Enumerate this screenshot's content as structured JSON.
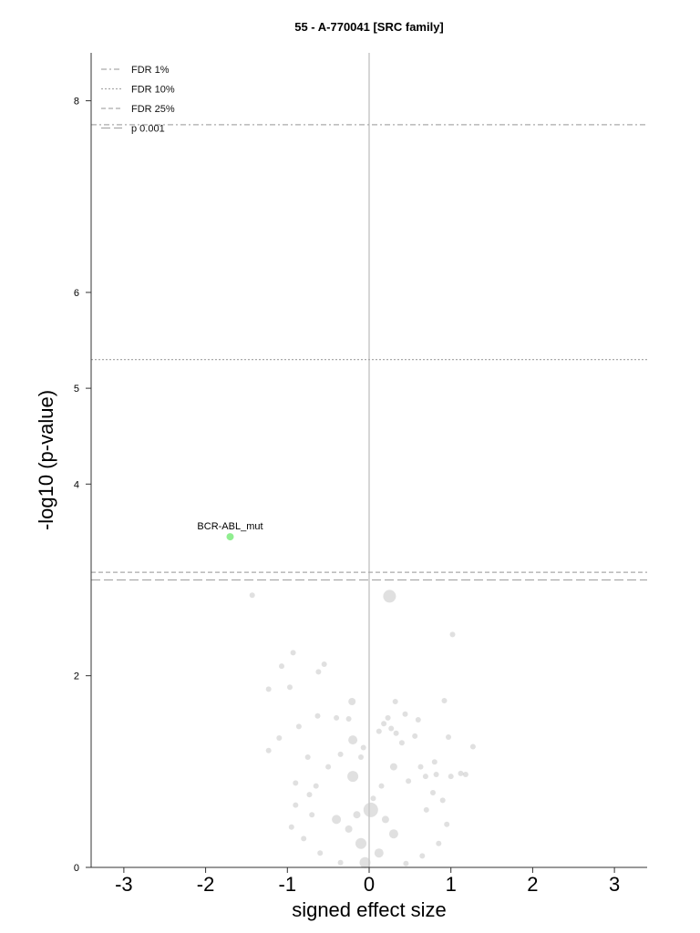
{
  "chart_data": {
    "type": "scatter",
    "title": "55 - A-770041 [SRC family]",
    "xlabel": "signed effect size",
    "ylabel": "-log10 (p-value)",
    "xlim": [
      -3.4,
      3.4
    ],
    "ylim": [
      0,
      8.5
    ],
    "x_ticks": [
      "-3",
      "-2",
      "-1",
      "0",
      "1",
      "2",
      "3"
    ],
    "y_ticks": [
      "0",
      "2",
      "4",
      "5",
      "6",
      "8"
    ],
    "grid": false,
    "legend_position": "top-left",
    "colors": {
      "background_points": "#555555",
      "highlight": "#90ee90",
      "lines": "#aaaaaa",
      "zero_line": "#c8c8c8"
    },
    "thresholds": [
      {
        "name": "FDR 1%",
        "y": 7.75,
        "style": "dashdot"
      },
      {
        "name": "FDR 10%",
        "y": 5.3,
        "style": "dotted"
      },
      {
        "name": "FDR 25%",
        "y": 3.08,
        "style": "dashed"
      },
      {
        "name": "p 0.001",
        "y": 3.0,
        "style": "longdash"
      }
    ],
    "highlight_points": [
      {
        "label": "BCR-ABL_mut",
        "x": -1.7,
        "y": 3.45,
        "size": 4
      }
    ],
    "points": [
      [
        0.25,
        2.83,
        7
      ],
      [
        -1.43,
        2.84,
        3
      ],
      [
        1.02,
        2.43,
        3
      ],
      [
        -0.93,
        2.24,
        3
      ],
      [
        -0.55,
        2.12,
        3
      ],
      [
        -1.07,
        2.1,
        3
      ],
      [
        -0.62,
        2.04,
        3
      ],
      [
        -1.23,
        1.86,
        3
      ],
      [
        -0.97,
        1.88,
        3
      ],
      [
        0.92,
        1.74,
        3
      ],
      [
        0.32,
        1.73,
        3
      ],
      [
        -0.21,
        1.73,
        4
      ],
      [
        -0.63,
        1.58,
        3
      ],
      [
        -0.4,
        1.56,
        3
      ],
      [
        -0.25,
        1.55,
        3
      ],
      [
        0.23,
        1.56,
        3
      ],
      [
        0.44,
        1.6,
        3
      ],
      [
        0.6,
        1.54,
        3
      ],
      [
        -0.86,
        1.47,
        3
      ],
      [
        0.18,
        1.5,
        3
      ],
      [
        0.27,
        1.45,
        3
      ],
      [
        -1.1,
        1.35,
        3
      ],
      [
        0.97,
        1.36,
        3
      ],
      [
        -0.2,
        1.33,
        5
      ],
      [
        0.12,
        1.42,
        3
      ],
      [
        0.33,
        1.4,
        3
      ],
      [
        0.56,
        1.37,
        3
      ],
      [
        -1.23,
        1.22,
        3
      ],
      [
        1.27,
        1.26,
        3
      ],
      [
        -0.07,
        1.25,
        3
      ],
      [
        0.4,
        1.3,
        3
      ],
      [
        -0.75,
        1.15,
        3
      ],
      [
        -0.35,
        1.18,
        3
      ],
      [
        -0.1,
        1.15,
        3
      ],
      [
        0.8,
        1.1,
        3
      ],
      [
        0.63,
        1.05,
        3
      ],
      [
        0.3,
        1.05,
        4
      ],
      [
        -0.5,
        1.05,
        3
      ],
      [
        -0.2,
        0.95,
        6
      ],
      [
        1.12,
        0.98,
        3
      ],
      [
        1.0,
        0.95,
        3
      ],
      [
        1.18,
        0.97,
        3
      ],
      [
        0.82,
        0.97,
        3
      ],
      [
        -0.9,
        0.88,
        3
      ],
      [
        0.48,
        0.9,
        3
      ],
      [
        0.69,
        0.95,
        3
      ],
      [
        -0.65,
        0.85,
        3
      ],
      [
        0.15,
        0.85,
        3
      ],
      [
        0.02,
        0.6,
        8
      ],
      [
        -0.4,
        0.5,
        5
      ],
      [
        0.3,
        0.35,
        5
      ],
      [
        -0.1,
        0.25,
        6
      ],
      [
        0.12,
        0.15,
        5
      ],
      [
        -0.05,
        0.05,
        6
      ],
      [
        0.05,
        0.72,
        3
      ],
      [
        0.78,
        0.78,
        3
      ],
      [
        -0.73,
        0.76,
        3
      ],
      [
        0.9,
        0.7,
        3
      ],
      [
        -0.9,
        0.65,
        3
      ],
      [
        0.7,
        0.6,
        3
      ],
      [
        -0.7,
        0.55,
        3
      ],
      [
        -0.95,
        0.42,
        3
      ],
      [
        0.95,
        0.45,
        3
      ],
      [
        -0.8,
        0.3,
        3
      ],
      [
        0.85,
        0.25,
        3
      ],
      [
        -0.6,
        0.15,
        3
      ],
      [
        0.65,
        0.12,
        3
      ],
      [
        -0.35,
        0.05,
        3
      ],
      [
        0.45,
        0.04,
        3
      ],
      [
        -0.25,
        0.4,
        4
      ],
      [
        0.2,
        0.5,
        4
      ],
      [
        -0.15,
        0.55,
        4
      ]
    ]
  }
}
